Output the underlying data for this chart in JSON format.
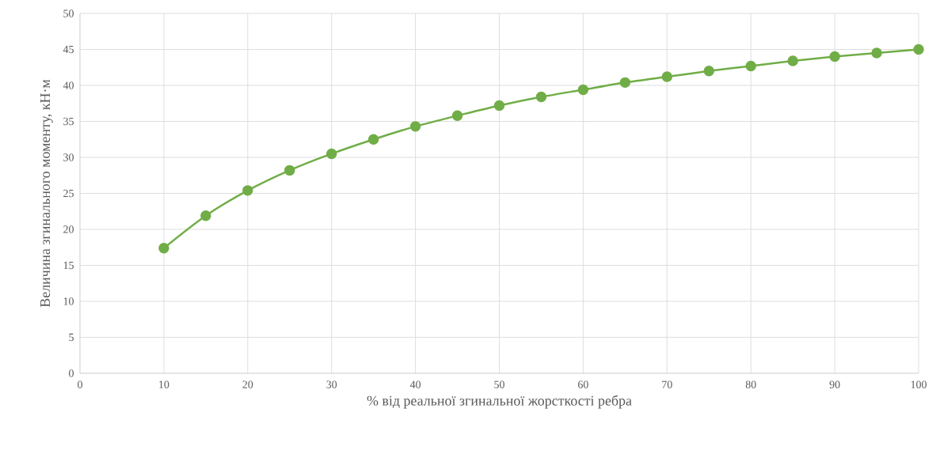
{
  "chart_data": {
    "type": "line",
    "xlabel": "% від реальної згинальної жорсткості ребра",
    "ylabel": "Величина згинального моменту, кН·м",
    "x": [
      10,
      15,
      20,
      25,
      30,
      35,
      40,
      45,
      50,
      55,
      60,
      65,
      70,
      75,
      80,
      85,
      90,
      95,
      100
    ],
    "series": [
      {
        "color": "#70ad47",
        "values": [
          17.4,
          21.9,
          25.4,
          28.2,
          30.5,
          32.5,
          34.3,
          35.8,
          37.2,
          38.4,
          39.4,
          40.4,
          41.2,
          42.0,
          42.7,
          43.4,
          44.0,
          44.5,
          45.0
        ]
      }
    ],
    "xlim": [
      0,
      100
    ],
    "ylim": [
      0,
      50
    ],
    "xticks": [
      0,
      10,
      20,
      30,
      40,
      50,
      60,
      70,
      80,
      90,
      100
    ],
    "yticks": [
      0,
      5,
      10,
      15,
      20,
      25,
      30,
      35,
      40,
      45,
      50
    ],
    "grid": true,
    "marker": "circle",
    "line_style": "solid"
  }
}
